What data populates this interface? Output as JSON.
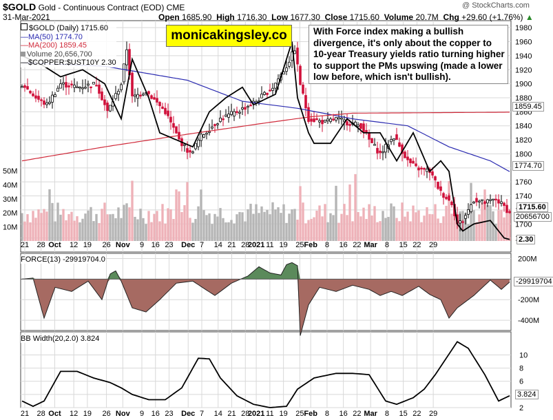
{
  "header": {
    "symbol": "$GOLD",
    "description": "Gold - Continuous Contract (EOD)",
    "exchange": "CME",
    "date": "31-Mar-2021",
    "open_label": "Open",
    "open": "1685.90",
    "high_label": "High",
    "high": "1716.30",
    "low_label": "Low",
    "low": "1677.30",
    "close_label": "Close",
    "close": "1715.60",
    "volume_label": "Volume",
    "volume": "20.7M",
    "chg_label": "Chg",
    "chg": "+29.60 (+1.76%)",
    "chg_arrow": "▲",
    "copyright": "@ StockCharts.com"
  },
  "brand_box": "monicakingsley.co",
  "annotation": "With Force index making a bullish divergence, it's only about the copper to 10-year Treasury yields ratio turning higher to support the PMs upswing (made a lower low before, which isn't bullish).",
  "legend": {
    "gold": "$GOLD (Daily) 1715.60",
    "ma50": "MA(50) 1774.70",
    "ma200": "MA(200) 1859.45",
    "volume": "Volume 20,656,700",
    "copper": "$COPPER:$UST10Y 2.30",
    "force": "FORCE(13) -29919704.0",
    "bbw": "BB Width(20,2.0) 3.824"
  },
  "tags": {
    "close": "1715.60",
    "ma200": "1859.45",
    "ma50": "1774.70",
    "volume": "20656700",
    "copper": "2.30",
    "force": "-29919704",
    "bbw": "3.824"
  },
  "colors": {
    "up": "#000000",
    "down": "#d0103a",
    "ma50": "#2a2ab0",
    "ma200": "#d02a3a",
    "vol_up": "#b5b5b5",
    "vol_down": "#eeb1b8",
    "force_neg": "#a66a62",
    "force_pos": "#5b8a5b",
    "grid": "#d8d8d8"
  },
  "chart_data": [
    {
      "type": "candlestick",
      "title": "$GOLD (Daily)",
      "y_axis_side": "right",
      "ylim": [
        1660,
        1990
      ],
      "y_ticks": [
        1680,
        1700,
        1720,
        1740,
        1760,
        1780,
        1800,
        1820,
        1840,
        1860,
        1880,
        1900,
        1920,
        1940,
        1960,
        1980
      ],
      "x_tick_labels": [
        "21",
        "28",
        "Oct",
        "12",
        "19",
        "26",
        "Nov",
        "9",
        "16",
        "23",
        "Dec",
        "7",
        "14",
        "21",
        "28",
        "2021",
        "11",
        "19",
        "25",
        "Feb",
        "8",
        "16",
        "22",
        "Mar",
        "8",
        "15",
        "22",
        "29"
      ],
      "series": [
        {
          "name": "$GOLD",
          "anchors_close": [
            [
              0,
              1900
            ],
            [
              5,
              1880
            ],
            [
              9,
              1870
            ],
            [
              14,
              1900
            ],
            [
              20,
              1895
            ],
            [
              27,
              1900
            ],
            [
              31,
              1860
            ],
            [
              36,
              1900
            ],
            [
              38,
              1950
            ],
            [
              40,
              1880
            ],
            [
              45,
              1890
            ],
            [
              52,
              1860
            ],
            [
              57,
              1820
            ],
            [
              61,
              1800
            ],
            [
              65,
              1825
            ],
            [
              72,
              1850
            ],
            [
              78,
              1860
            ],
            [
              85,
              1875
            ],
            [
              91,
              1895
            ],
            [
              96,
              1925
            ],
            [
              99,
              1950
            ],
            [
              101,
              1900
            ],
            [
              104,
              1850
            ],
            [
              110,
              1845
            ],
            [
              114,
              1850
            ],
            [
              118,
              1845
            ],
            [
              123,
              1840
            ],
            [
              126,
              1820
            ],
            [
              130,
              1800
            ],
            [
              135,
              1825
            ],
            [
              140,
              1790
            ],
            [
              143,
              1780
            ],
            [
              148,
              1775
            ],
            [
              152,
              1745
            ],
            [
              156,
              1730
            ],
            [
              158,
              1700
            ],
            [
              160,
              1705
            ],
            [
              164,
              1735
            ],
            [
              168,
              1730
            ],
            [
              172,
              1735
            ],
            [
              175,
              1725
            ],
            [
              177,
              1715
            ]
          ]
        },
        {
          "name": "MA(50)",
          "values_at_anchors": [
            [
              0,
              1930
            ],
            [
              30,
              1925
            ],
            [
              60,
              1905
            ],
            [
              80,
              1875
            ],
            [
              100,
              1865
            ],
            [
              120,
              1850
            ],
            [
              140,
              1840
            ],
            [
              155,
              1810
            ],
            [
              170,
              1790
            ],
            [
              177,
              1774.7
            ]
          ]
        },
        {
          "name": "MA(200)",
          "values_at_anchors": [
            [
              0,
              1790
            ],
            [
              30,
              1810
            ],
            [
              60,
              1828
            ],
            [
              90,
              1845
            ],
            [
              105,
              1853
            ],
            [
              120,
              1858
            ],
            [
              177,
              1859.45
            ]
          ]
        },
        {
          "name": "$COPPER:$UST10Y",
          "anchors": [
            [
              0,
              1940
            ],
            [
              8,
              1925
            ],
            [
              14,
              1910
            ],
            [
              22,
              1920
            ],
            [
              30,
              1900
            ],
            [
              36,
              1850
            ],
            [
              40,
              1935
            ],
            [
              46,
              1880
            ],
            [
              50,
              1830
            ],
            [
              56,
              1820
            ],
            [
              62,
              1810
            ],
            [
              68,
              1860
            ],
            [
              74,
              1880
            ],
            [
              80,
              1895
            ],
            [
              84,
              1870
            ],
            [
              92,
              1885
            ],
            [
              98,
              1960
            ],
            [
              100,
              1880
            ],
            [
              104,
              1830
            ],
            [
              106,
              1815
            ],
            [
              112,
              1815
            ],
            [
              118,
              1850
            ],
            [
              124,
              1830
            ],
            [
              130,
              1830
            ],
            [
              136,
              1790
            ],
            [
              142,
              1830
            ],
            [
              148,
              1775
            ],
            [
              152,
              1790
            ],
            [
              155,
              1775
            ],
            [
              158,
              1700
            ],
            [
              160,
              1690
            ],
            [
              164,
              1700
            ],
            [
              170,
              1705
            ],
            [
              175,
              1680
            ],
            [
              177,
              1678
            ]
          ]
        }
      ]
    },
    {
      "type": "bar",
      "title": "Volume",
      "y_tick_labels": [
        "10M",
        "20M",
        "30M",
        "40M",
        "50M"
      ],
      "last_value": 20656700
    },
    {
      "type": "area",
      "title": "FORCE(13)",
      "ylim": [
        -500,
        250
      ],
      "y_tick_labels": [
        "200M",
        "-200M",
        "-400M"
      ],
      "units": "M",
      "anchors": [
        [
          0,
          0
        ],
        [
          4,
          10
        ],
        [
          8,
          -380
        ],
        [
          12,
          -80
        ],
        [
          18,
          -120
        ],
        [
          24,
          -20
        ],
        [
          29,
          -200
        ],
        [
          32,
          50
        ],
        [
          34,
          80
        ],
        [
          36,
          -20
        ],
        [
          40,
          -280
        ],
        [
          45,
          -320
        ],
        [
          50,
          -200
        ],
        [
          56,
          -40
        ],
        [
          62,
          -20
        ],
        [
          70,
          -160
        ],
        [
          76,
          -40
        ],
        [
          82,
          30
        ],
        [
          86,
          120
        ],
        [
          90,
          60
        ],
        [
          94,
          40
        ],
        [
          96,
          140
        ],
        [
          98,
          160
        ],
        [
          100,
          130
        ],
        [
          101,
          -550
        ],
        [
          104,
          -250
        ],
        [
          108,
          -80
        ],
        [
          114,
          -120
        ],
        [
          120,
          -60
        ],
        [
          126,
          -100
        ],
        [
          130,
          -160
        ],
        [
          134,
          -120
        ],
        [
          138,
          -160
        ],
        [
          144,
          -70
        ],
        [
          148,
          -150
        ],
        [
          152,
          -200
        ],
        [
          155,
          -380
        ],
        [
          158,
          -280
        ],
        [
          164,
          -160
        ],
        [
          170,
          -10
        ],
        [
          174,
          -100
        ],
        [
          177,
          -30
        ]
      ],
      "last_value": -29919704
    },
    {
      "type": "line",
      "title": "BB Width(20,2.0)",
      "ylim": [
        2,
        12
      ],
      "y_ticks": [
        2,
        4,
        6,
        8,
        10
      ],
      "anchors": [
        [
          0,
          3.0
        ],
        [
          4,
          2.2
        ],
        [
          8,
          3.0
        ],
        [
          14,
          7.5
        ],
        [
          20,
          7.5
        ],
        [
          26,
          6.5
        ],
        [
          32,
          5.8
        ],
        [
          36,
          5.0
        ],
        [
          40,
          4.0
        ],
        [
          46,
          3.2
        ],
        [
          52,
          3.2
        ],
        [
          58,
          5.0
        ],
        [
          64,
          9.5
        ],
        [
          68,
          9.4
        ],
        [
          72,
          6.5
        ],
        [
          78,
          3.8
        ],
        [
          84,
          2.5
        ],
        [
          90,
          2.0
        ],
        [
          96,
          2.2
        ],
        [
          100,
          4.8
        ],
        [
          106,
          6.5
        ],
        [
          114,
          7.2
        ],
        [
          120,
          7.2
        ],
        [
          126,
          7.0
        ],
        [
          132,
          3.0
        ],
        [
          136,
          2.5
        ],
        [
          142,
          3.5
        ],
        [
          146,
          4.8
        ],
        [
          150,
          7.0
        ],
        [
          154,
          9.5
        ],
        [
          158,
          12.0
        ],
        [
          162,
          11.0
        ],
        [
          168,
          7.0
        ],
        [
          173,
          3.0
        ],
        [
          177,
          3.8
        ]
      ],
      "last_value": 3.824
    }
  ]
}
